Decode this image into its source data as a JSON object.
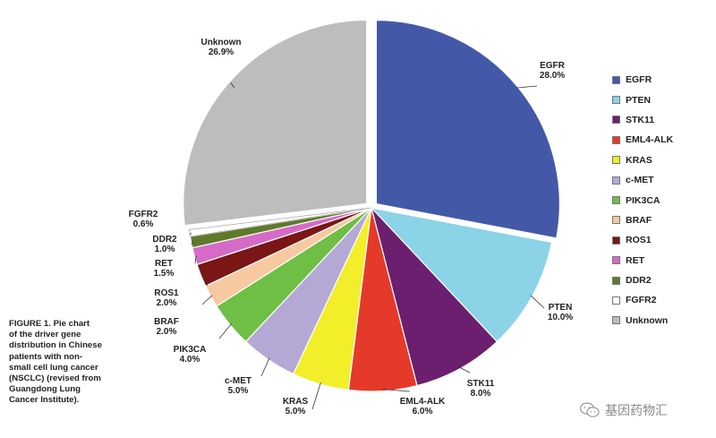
{
  "chart_data": {
    "type": "pie",
    "slices": [
      {
        "name": "EGFR",
        "value": 28.0,
        "label": "28.0%",
        "color": "#4359A8",
        "exploded": true
      },
      {
        "name": "PTEN",
        "value": 10.0,
        "label": "10.0%",
        "color": "#8BD3E6"
      },
      {
        "name": "STK11",
        "value": 8.0,
        "label": "8.0%",
        "color": "#6B1F6E"
      },
      {
        "name": "EML4-ALK",
        "value": 6.0,
        "label": "6.0%",
        "color": "#E53A2A"
      },
      {
        "name": "KRAS",
        "value": 5.0,
        "label": "5.0%",
        "color": "#F2EE2A"
      },
      {
        "name": "c-MET",
        "value": 5.0,
        "label": "5.0%",
        "color": "#B3A9D4"
      },
      {
        "name": "PIK3CA",
        "value": 4.0,
        "label": "4.0%",
        "color": "#6FBE45"
      },
      {
        "name": "BRAF",
        "value": 2.0,
        "label": "2.0%",
        "color": "#F7C9A0"
      },
      {
        "name": "ROS1",
        "value": 2.0,
        "label": "2.0%",
        "color": "#7A1616"
      },
      {
        "name": "RET",
        "value": 1.5,
        "label": "1.5%",
        "color": "#D56BC6"
      },
      {
        "name": "DDR2",
        "value": 1.0,
        "label": "1.0%",
        "color": "#5E7A2A"
      },
      {
        "name": "FGFR2",
        "value": 0.6,
        "label": "0.6%",
        "color": "#FFFFFF"
      },
      {
        "name": "Unknown",
        "value": 26.9,
        "label": "26.9%",
        "color": "#BDBDBD",
        "exploded": true
      }
    ],
    "legend": [
      "EGFR",
      "PTEN",
      "STK11",
      "EML4-ALK",
      "KRAS",
      "c-MET",
      "PIK3CA",
      "BRAF",
      "ROS1",
      "RET",
      "DDR2",
      "FGFR2",
      "Unknown"
    ],
    "legend_position": "right"
  },
  "caption": "FIGURE 1. Pie chart\nof the driver gene\ndistribution in Chinese\npatients with non-\nsmall cell lung cancer\n(NSCLC) (revised from\nGuangdong Lung\nCancer Institute).",
  "watermark": {
    "text": "基因药物汇",
    "icon": "wechat-icon"
  }
}
